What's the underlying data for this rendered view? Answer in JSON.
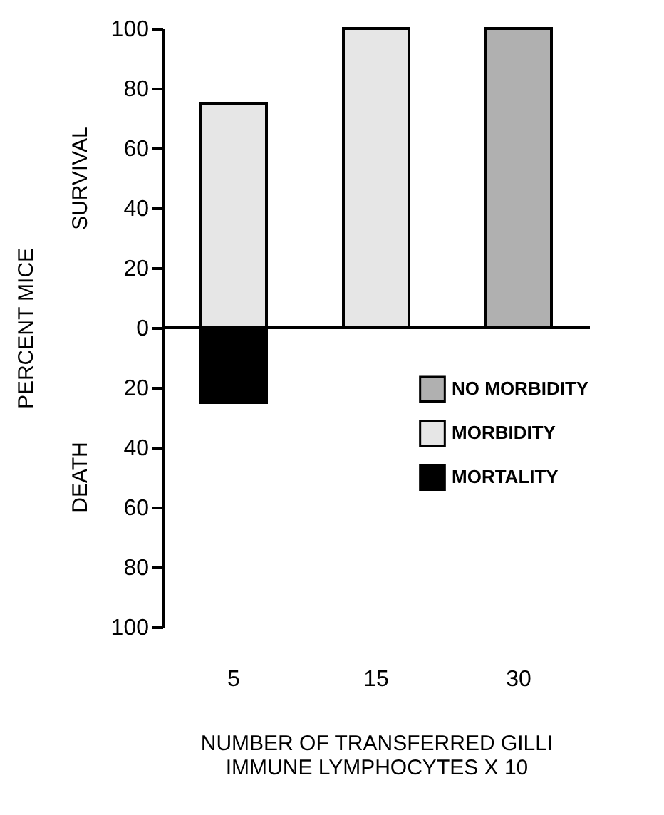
{
  "chart_data": {
    "type": "bar",
    "categories": [
      "5",
      "15",
      "30"
    ],
    "xlabel": "NUMBER OF TRANSFERRED GILLI\nIMMUNE LYMPHOCYTES X 10",
    "ylabel": "PERCENT MICE",
    "annotations": [
      "SURVIVAL",
      "DEATH"
    ],
    "series": [
      {
        "name": "NO MORBIDITY",
        "color": "#b0b0b0",
        "values": [
          null,
          null,
          100
        ]
      },
      {
        "name": "MORBIDITY",
        "color": "#e6e6e6",
        "values": [
          75,
          100,
          null
        ]
      },
      {
        "name": "MORTALITY",
        "color": "#000000",
        "values": [
          -25,
          null,
          null
        ]
      }
    ],
    "ylim": [
      -100,
      100
    ],
    "yticks": [
      {
        "value": -100,
        "label": "100"
      },
      {
        "value": -80,
        "label": "80"
      },
      {
        "value": -60,
        "label": "60"
      },
      {
        "value": -40,
        "label": "40"
      },
      {
        "value": -20,
        "label": "20"
      },
      0,
      20,
      40,
      60,
      80,
      100
    ],
    "ref_lines": [
      {
        "axis": "y",
        "value": 0
      }
    ],
    "legend": "right",
    "grid": false
  }
}
